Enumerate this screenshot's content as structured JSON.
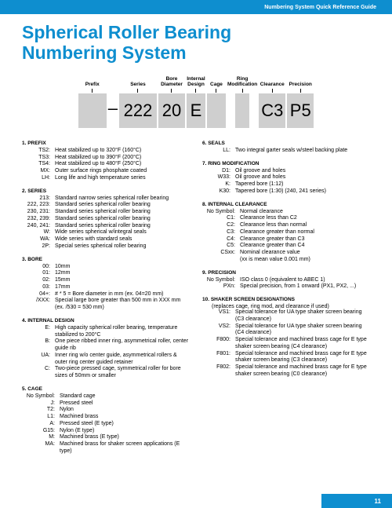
{
  "header": {
    "guide_title": "Numbering System Quick Reference Guide"
  },
  "title_l1": "Spherical Roller Bearing",
  "title_l2": "Numbering System",
  "diagram": {
    "prefix_label": "Prefix",
    "series_label": "Series",
    "bore_label": "Bore\nDiameter",
    "design_label": "Internal\nDesign",
    "cage_label": "Cage",
    "ring_label": "Ring\nModification",
    "clear_label": "Clearance",
    "prec_label": "Precision",
    "sep": "–",
    "series_val": "222",
    "bore_val": "20",
    "design_val": "E",
    "clear_val": "C3",
    "prec_val": "P5"
  },
  "s1": {
    "head": "1.   PREFIX",
    "r": [
      [
        "TS2:",
        "Heat stabilized up to 320°F (160°C)"
      ],
      [
        "TS3:",
        "Heat stabilized up to 390°F (200°C)"
      ],
      [
        "TS4:",
        "Heat stabilized up to 480°F (250°C)"
      ],
      [
        "MX:",
        "Outer surface rings phosphate coated"
      ],
      [
        "LH:",
        "Long life and high temperature series"
      ]
    ]
  },
  "s2": {
    "head": "2.   SERIES",
    "r": [
      [
        "213:",
        "Standard narrow series spherical roller bearing"
      ],
      [
        "222, 223:",
        "Standard series spherical roller bearing"
      ],
      [
        "230, 231:",
        "Standard series spherical roller bearing"
      ],
      [
        "232, 239:",
        "Standard series spherical roller bearing"
      ],
      [
        "240, 241:",
        "Standard series spherical roller bearing"
      ],
      [
        "W:",
        "Wide series spherical w/integral seals"
      ],
      [
        "WA:",
        "Wide series with standard seals"
      ],
      [
        "2P:",
        "Special series spherical roller bearing"
      ]
    ]
  },
  "s3": {
    "head": "3.   BORE",
    "r": [
      [
        "00:",
        "10mm"
      ],
      [
        "01:",
        "12mm"
      ],
      [
        "02:",
        "15mm"
      ],
      [
        "03:",
        "17mm"
      ],
      [
        "04+:",
        "# * 5 = Bore diameter in mm (ex. 04=20 mm)"
      ],
      [
        "/XXX:",
        "Special large bore greater than 500 mm in XXX mm (ex. /530 = 530 mm)"
      ]
    ]
  },
  "s4": {
    "head": "4.   INTERNAL DESIGN",
    "r": [
      [
        "E:",
        "High capacity spherical roller bearing, temperature stabilized to 200°C"
      ],
      [
        "B:",
        "One piece ribbed inner ring, asymmetrical roller, center guide rib"
      ],
      [
        "UA:",
        "Inner ring w/o center guide, asymmetrical rollers & outer ring center guided retainer"
      ],
      [
        "C:",
        "Two-piece pressed cage, symmetrical roller for bore sizes of 50mm or smaller"
      ]
    ]
  },
  "s5": {
    "head": "5.   CAGE",
    "r": [
      [
        "No Symbol:",
        "Standard cage"
      ],
      [
        "J:",
        "Pressed steel"
      ],
      [
        "T2:",
        "Nylon"
      ],
      [
        "L1:",
        "Machined brass"
      ],
      [
        "A:",
        "Pressed steel (E type)"
      ],
      [
        "G15:",
        "Nylon (E type)"
      ],
      [
        "M:",
        "Machined brass (E type)"
      ],
      [
        "MA:",
        "Machined brass for shaker screen applications (E type)"
      ]
    ]
  },
  "s6": {
    "head": "6.   SEALS",
    "r": [
      [
        "LL:",
        "Two integral garter seals w/steel backing plate"
      ]
    ]
  },
  "s7": {
    "head": "7.   RING MODIFICATION",
    "r": [
      [
        "D1:",
        "Oil groove and holes"
      ],
      [
        "W33:",
        "Oil groove and holes"
      ],
      [
        "K:",
        "Tapered bore (1:12)"
      ],
      [
        "K30:",
        "Tapered bore (1:30) (240, 241 series)"
      ]
    ]
  },
  "s8": {
    "head": "8.   INTERNAL CLEARANCE",
    "r": [
      [
        "No Symbol:",
        "Normal clearance"
      ],
      [
        "C1:",
        "Clearance less than C2"
      ],
      [
        "C2:",
        "Clearance less than normal"
      ],
      [
        "C3:",
        "Clearance greater than normal"
      ],
      [
        "C4:",
        "Clearance greater than C3"
      ],
      [
        "C5:",
        "Clearance greater than C4"
      ],
      [
        "CSxx:",
        "Nominal clearance value"
      ]
    ],
    "note": "(xx is mean value 0.001 mm)"
  },
  "s9": {
    "head": "9.   PRECISION",
    "r": [
      [
        "No Symbol:",
        "ISO class 0 (equivalent to ABEC 1)"
      ],
      [
        "PXn:",
        "Special precision, from 1 onward (PX1, PX2, ...)"
      ]
    ]
  },
  "s10": {
    "head": "10.  SHAKER SCREEN DESIGNATIONS",
    "sub": "(replaces cage, ring mod, and clearance if used)",
    "r": [
      [
        "VS1:",
        "Special tolerance for UA type shaker screen bearing (C3 clearance)"
      ],
      [
        "VS2:",
        "Special tolerance for UA type shaker screen bearing (C4 clearance)"
      ],
      [
        "F800:",
        "Special tolerance and machined brass cage for E type shaker screen bearing (C4 clearance)"
      ],
      [
        "F801:",
        "Special tolerance and machined brass cage for E type shaker screen bearing (C3 clearance)"
      ],
      [
        "F802:",
        "Special tolerance and machined brass cage for E type shaker screen bearing (C0 clearance)"
      ]
    ]
  },
  "page_number": "11"
}
